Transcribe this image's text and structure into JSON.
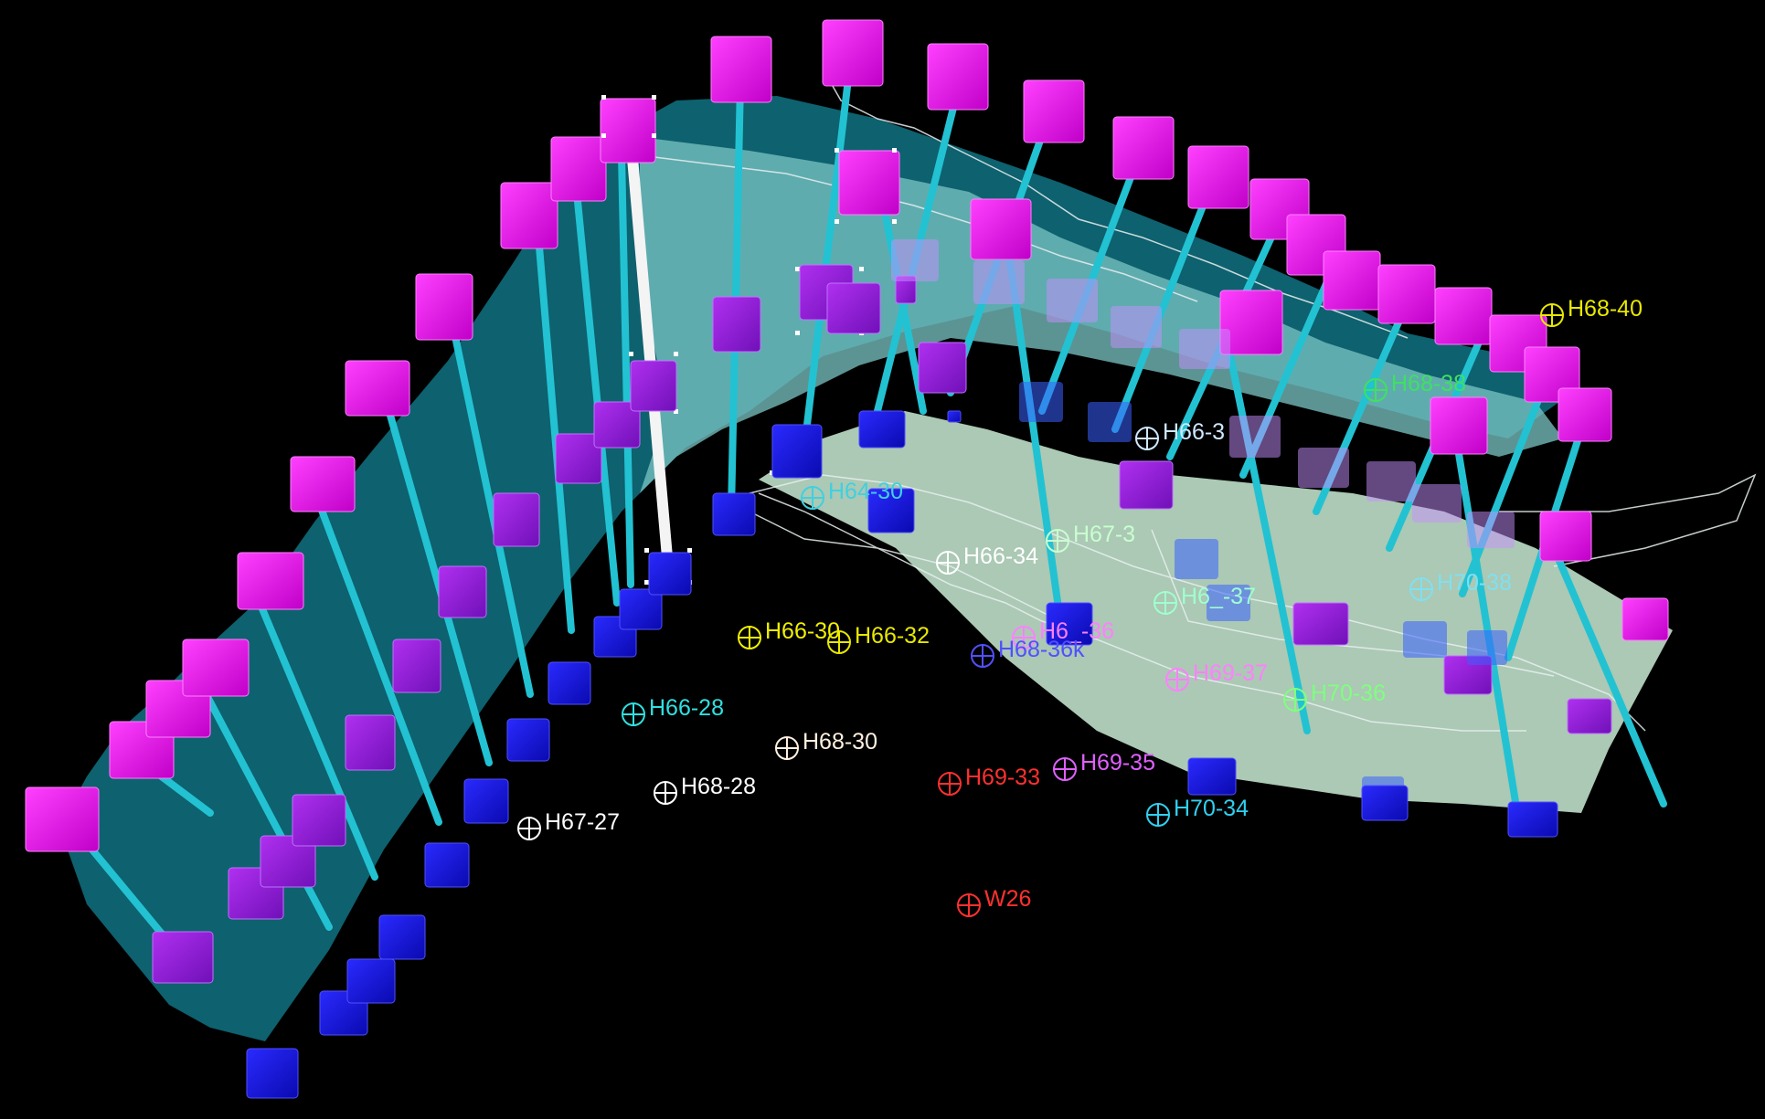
{
  "viewport": {
    "background": "#000000",
    "colors": {
      "cube_top": "#e000e0",
      "cube_mid": "#9a1ae0",
      "cube_bottom": "#1010e0",
      "pillar": "#20c0d0",
      "selected_pillar": "#ffffff",
      "surface_left": "#0e6a78",
      "surface_right": "#b8e8d0"
    }
  },
  "well_markers": [
    {
      "label": "H68-40",
      "color": "#e8e800"
    },
    {
      "label": "H68-38",
      "color": "#40e060"
    },
    {
      "label": "H66-3",
      "color": "#cfe8ff"
    },
    {
      "label": "H64-30",
      "color": "#40d0e0"
    },
    {
      "label": "H67-3",
      "color": "#c8ffd0"
    },
    {
      "label": "H66-34",
      "color": "#ffffff"
    },
    {
      "label": "H6_-37",
      "color": "#a0ffd0"
    },
    {
      "label": "H70-38",
      "color": "#80e0f0"
    },
    {
      "label": "H66-30",
      "color": "#f0f000"
    },
    {
      "label": "H66-32",
      "color": "#e8e800"
    },
    {
      "label": "H6_-36",
      "color": "#ff80ff"
    },
    {
      "label": "H68-36k",
      "color": "#5050ff"
    },
    {
      "label": "H69-37",
      "color": "#ff80ff"
    },
    {
      "label": "H70-36",
      "color": "#80ff80"
    },
    {
      "label": "H66-28",
      "color": "#30e0e0"
    },
    {
      "label": "H68-30",
      "color": "#fff0e0"
    },
    {
      "label": "H68-28",
      "color": "#ffffff"
    },
    {
      "label": "H69-33",
      "color": "#ff3030"
    },
    {
      "label": "H69-35",
      "color": "#e060ff"
    },
    {
      "label": "H67-27",
      "color": "#ffffff"
    },
    {
      "label": "H70-34",
      "color": "#30d0f0"
    },
    {
      "label": "W26",
      "color": "#ff3030"
    }
  ]
}
